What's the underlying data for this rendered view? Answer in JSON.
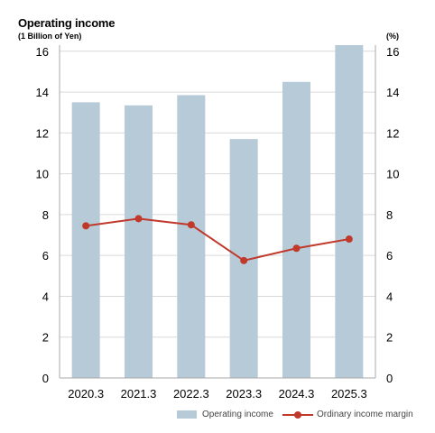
{
  "header": {
    "title": "Operating income",
    "unit_left": "(1 Billion of Yen)",
    "unit_right": "(%)"
  },
  "colors": {
    "bar": "#b7cad8",
    "line": "#c0392b",
    "grid": "#d9d9d9",
    "axis": "#aaaaaa"
  },
  "chart_data": {
    "type": "bar",
    "categories": [
      "2020.3",
      "2021.3",
      "2022.3",
      "2023.3",
      "2024.3",
      "2025.3"
    ],
    "series": [
      {
        "name": "Operating income",
        "type": "bar",
        "axis": "left",
        "values": [
          13.5,
          13.35,
          13.85,
          11.7,
          14.5,
          16.3
        ]
      },
      {
        "name": "Ordinary income margin",
        "type": "line",
        "axis": "right",
        "values": [
          7.45,
          7.8,
          7.5,
          5.75,
          6.35,
          6.8
        ]
      }
    ],
    "yticks_left": [
      "0",
      "2",
      "4",
      "6",
      "8",
      "10",
      "12",
      "14",
      "16"
    ],
    "yticks_right": [
      "0",
      "2",
      "4",
      "6",
      "8",
      "10",
      "12",
      "14",
      "16"
    ],
    "ylim_left": [
      0,
      16.3
    ],
    "ylim_right": [
      0,
      16.3
    ],
    "grid": true,
    "legend_position": "bottom-right"
  }
}
